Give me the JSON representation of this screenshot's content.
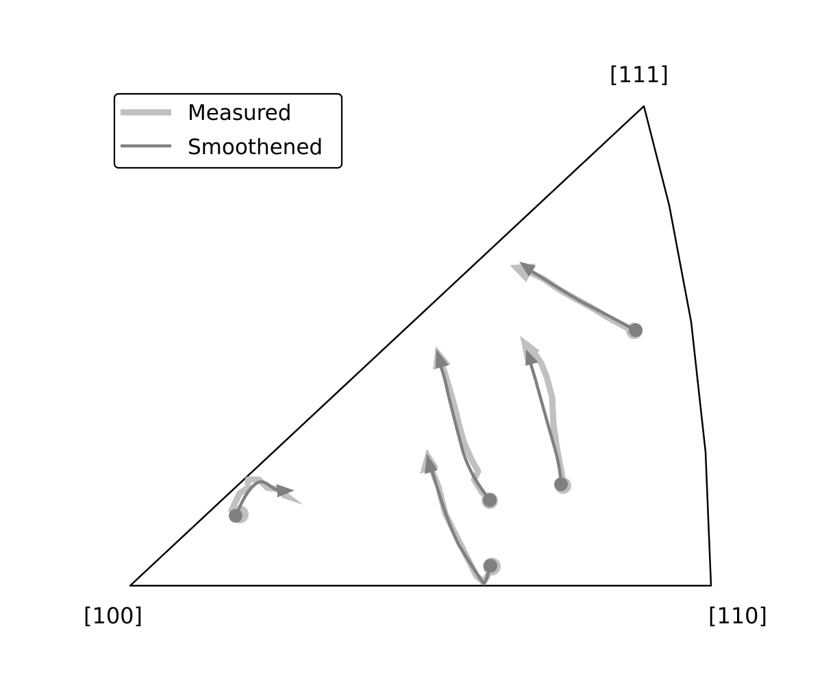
{
  "figure": {
    "type": "inverse-pole-figure",
    "corners": [
      {
        "id": "c100",
        "label": "[100]"
      },
      {
        "id": "c110",
        "label": "[110]"
      },
      {
        "id": "c111",
        "label": "[111]"
      }
    ]
  },
  "legend": {
    "placement": "upper-left",
    "entries": [
      {
        "label": "Measured",
        "color": "#c0c0c0"
      },
      {
        "label": "Smoothened",
        "color": "#808080"
      }
    ]
  },
  "colors": {
    "measured": "#c0c0c0",
    "smoothened": "#808080",
    "outline": "#000000"
  }
}
